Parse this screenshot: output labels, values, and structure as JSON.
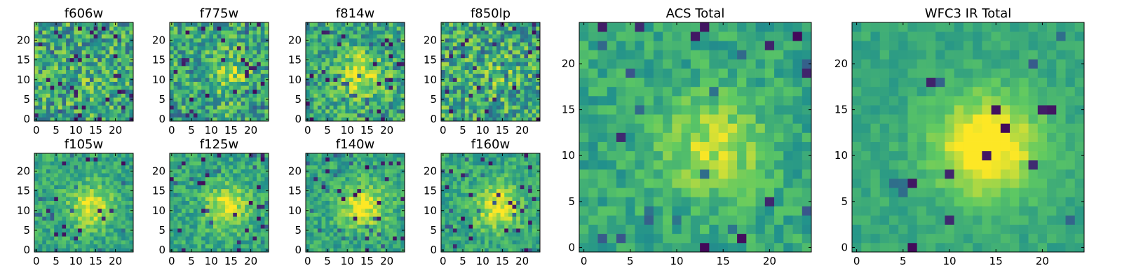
{
  "figure": {
    "colormap": "viridis",
    "colormap_stops": [
      "#440154",
      "#3b528b",
      "#21918c",
      "#5ec962",
      "#fde725"
    ]
  },
  "chart_data": [
    {
      "type": "heatmap",
      "title": "f606w",
      "grid_size": 25,
      "xlim": [
        0,
        24
      ],
      "ylim": [
        0,
        24
      ],
      "xticks": [
        "0",
        "5",
        "10",
        "15",
        "20"
      ],
      "yticks": [
        "0",
        "5",
        "10",
        "15",
        "20"
      ],
      "seed": 11,
      "signal": 0.05,
      "noise": 0.55,
      "spike_rate": 0.05
    },
    {
      "type": "heatmap",
      "title": "f775w",
      "grid_size": 25,
      "xlim": [
        0,
        24
      ],
      "ylim": [
        0,
        24
      ],
      "xticks": [
        "0",
        "5",
        "10",
        "15",
        "20"
      ],
      "yticks": [
        "0",
        "5",
        "10",
        "15",
        "20"
      ],
      "seed": 23,
      "signal": 0.2,
      "noise": 0.5,
      "spike_rate": 0.04
    },
    {
      "type": "heatmap",
      "title": "f814w",
      "grid_size": 25,
      "xlim": [
        0,
        24
      ],
      "ylim": [
        0,
        24
      ],
      "xticks": [
        "0",
        "5",
        "10",
        "15",
        "20"
      ],
      "yticks": [
        "0",
        "5",
        "10",
        "15",
        "20"
      ],
      "seed": 37,
      "signal": 0.35,
      "noise": 0.45,
      "spike_rate": 0.04
    },
    {
      "type": "heatmap",
      "title": "f850lp",
      "grid_size": 25,
      "xlim": [
        0,
        24
      ],
      "ylim": [
        0,
        24
      ],
      "xticks": [
        "0",
        "5",
        "10",
        "15",
        "20"
      ],
      "yticks": [
        "0",
        "5",
        "10",
        "15",
        "20"
      ],
      "seed": 41,
      "signal": 0.1,
      "noise": 0.55,
      "spike_rate": 0.05
    },
    {
      "type": "heatmap",
      "title": "f105w",
      "grid_size": 25,
      "xlim": [
        0,
        24
      ],
      "ylim": [
        0,
        24
      ],
      "xticks": [
        "0",
        "5",
        "10",
        "15",
        "20"
      ],
      "yticks": [
        "0",
        "5",
        "10",
        "15",
        "20"
      ],
      "seed": 53,
      "signal": 0.35,
      "noise": 0.3,
      "spike_rate": 0.03
    },
    {
      "type": "heatmap",
      "title": "f125w",
      "grid_size": 25,
      "xlim": [
        0,
        24
      ],
      "ylim": [
        0,
        24
      ],
      "xticks": [
        "0",
        "5",
        "10",
        "15",
        "20"
      ],
      "yticks": [
        "0",
        "5",
        "10",
        "15",
        "20"
      ],
      "seed": 67,
      "signal": 0.35,
      "noise": 0.3,
      "spike_rate": 0.03
    },
    {
      "type": "heatmap",
      "title": "f140w",
      "grid_size": 25,
      "xlim": [
        0,
        24
      ],
      "ylim": [
        0,
        24
      ],
      "xticks": [
        "0",
        "5",
        "10",
        "15",
        "20"
      ],
      "yticks": [
        "0",
        "5",
        "10",
        "15",
        "20"
      ],
      "seed": 71,
      "signal": 0.4,
      "noise": 0.3,
      "spike_rate": 0.04
    },
    {
      "type": "heatmap",
      "title": "f160w",
      "grid_size": 25,
      "xlim": [
        0,
        24
      ],
      "ylim": [
        0,
        24
      ],
      "xticks": [
        "0",
        "5",
        "10",
        "15",
        "20"
      ],
      "yticks": [
        "0",
        "5",
        "10",
        "15",
        "20"
      ],
      "seed": 83,
      "signal": 0.4,
      "noise": 0.3,
      "spike_rate": 0.04
    },
    {
      "type": "heatmap",
      "title": "ACS Total",
      "grid_size": 25,
      "xlim": [
        0,
        24
      ],
      "ylim": [
        0,
        24
      ],
      "xticks": [
        "0",
        "5",
        "10",
        "15",
        "20"
      ],
      "yticks": [
        "0",
        "5",
        "10",
        "15",
        "20"
      ],
      "seed": 97,
      "signal": 0.3,
      "noise": 0.25,
      "spike_rate": 0.025
    },
    {
      "type": "heatmap",
      "title": "WFC3 IR Total",
      "grid_size": 25,
      "xlim": [
        0,
        24
      ],
      "ylim": [
        0,
        24
      ],
      "xticks": [
        "0",
        "5",
        "10",
        "15",
        "20"
      ],
      "yticks": [
        "0",
        "5",
        "10",
        "15",
        "20"
      ],
      "seed": 101,
      "signal": 0.5,
      "noise": 0.15,
      "spike_rate": 0.02
    }
  ]
}
